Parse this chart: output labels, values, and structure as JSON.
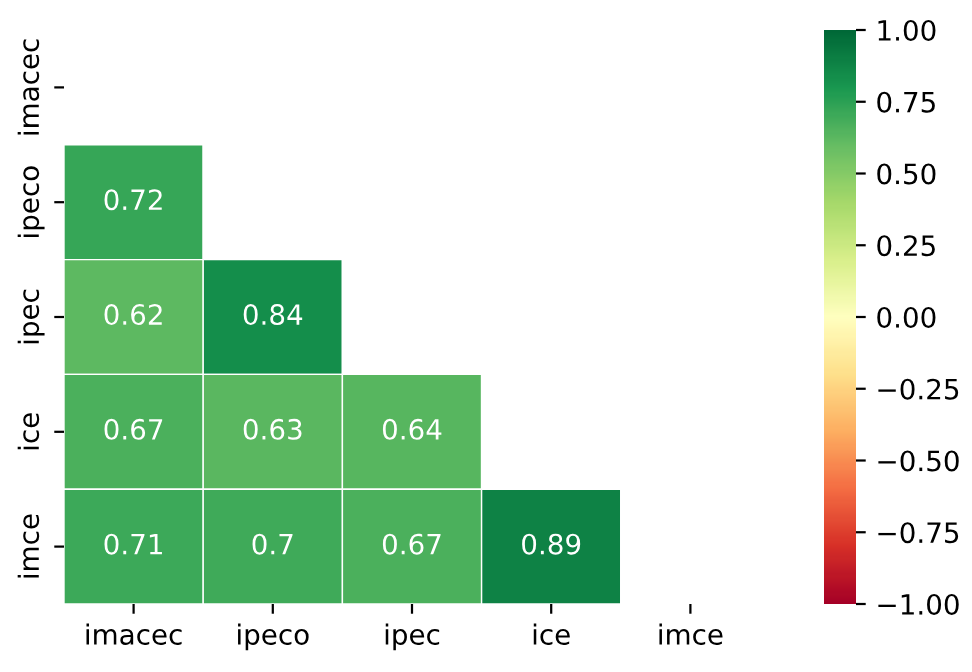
{
  "chart_data": {
    "type": "heatmap",
    "categories": [
      "imacec",
      "ipeco",
      "ipec",
      "ice",
      "imce"
    ],
    "y_categories": [
      "imacec",
      "ipeco",
      "ipec",
      "ice",
      "imce"
    ],
    "cells": [
      [
        null,
        null,
        null,
        null,
        null
      ],
      [
        0.72,
        null,
        null,
        null,
        null
      ],
      [
        0.62,
        0.84,
        null,
        null,
        null
      ],
      [
        0.67,
        0.63,
        0.64,
        null,
        null
      ],
      [
        0.71,
        0.7,
        0.67,
        0.89,
        null
      ]
    ],
    "clim": [
      -1,
      1
    ],
    "cticks": [
      {
        "value": -1,
        "label": "−1.00"
      },
      {
        "value": -0.75,
        "label": "−0.75"
      },
      {
        "value": -0.5,
        "label": "−0.50"
      },
      {
        "value": -0.25,
        "label": "−0.25"
      },
      {
        "value": 0,
        "label": "0.00"
      },
      {
        "value": 0.25,
        "label": "0.25"
      },
      {
        "value": 0.5,
        "label": "0.50"
      },
      {
        "value": 0.75,
        "label": "0.75"
      },
      {
        "value": 1,
        "label": "1.00"
      }
    ],
    "data_labels": true
  }
}
